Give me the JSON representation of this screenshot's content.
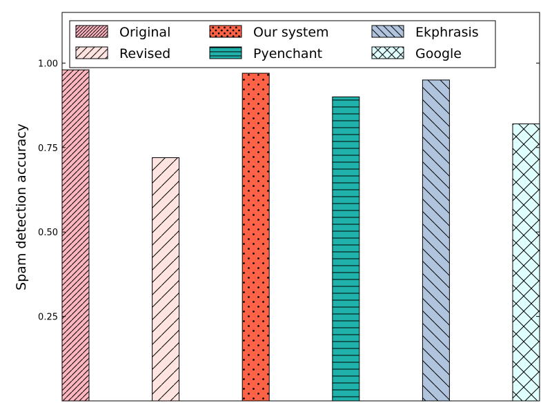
{
  "chart_data": {
    "type": "bar",
    "title": "",
    "xlabel": "",
    "ylabel": "Spam detection accuracy",
    "ylim": [
      0,
      1.15
    ],
    "yticks": [
      0.25,
      0.5,
      0.75,
      1.0
    ],
    "ytick_labels": [
      "0.25",
      "0.50",
      "0.75",
      "1.00"
    ],
    "grid": false,
    "legend_position": "top",
    "legend_columns": 3,
    "series": [
      {
        "name": "Original",
        "value": 0.98,
        "color": "#FFB6C1",
        "hatch": "dense-diagonal"
      },
      {
        "name": "Revised",
        "value": 0.72,
        "color": "#FFE4E1",
        "hatch": "diagonal"
      },
      {
        "name": "Our system",
        "value": 0.97,
        "color": "#FF6347",
        "hatch": "dots"
      },
      {
        "name": "Pyenchant",
        "value": 0.9,
        "color": "#20B2AA",
        "hatch": "horizontal"
      },
      {
        "name": "Ekphrasis",
        "value": 0.95,
        "color": "#B0C4DE",
        "hatch": "back-diagonal"
      },
      {
        "name": "Google",
        "value": 0.82,
        "color": "#E0FFFF",
        "hatch": "cross"
      }
    ]
  }
}
